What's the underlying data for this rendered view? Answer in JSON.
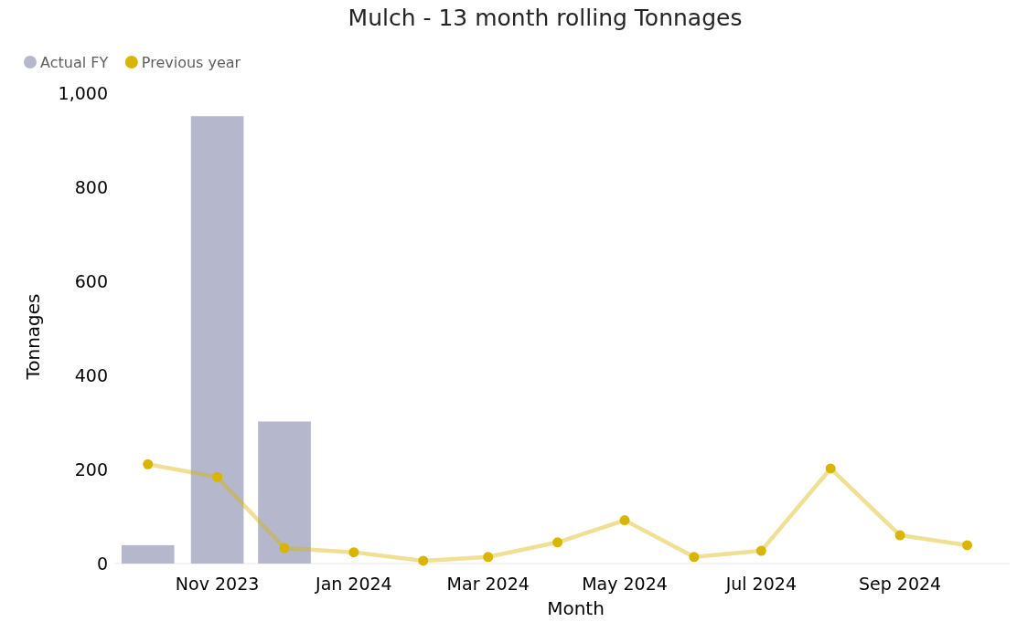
{
  "chart_data": {
    "type": "bar",
    "title": "Mulch - 13 month rolling Tonnages",
    "xlabel": "Month",
    "ylabel": "Tonnages",
    "x": [
      "2023-10",
      "2023-11",
      "2023-12",
      "2024-01",
      "2024-02",
      "2024-03",
      "2024-04",
      "2024-05",
      "2024-06",
      "2024-07",
      "2024-08",
      "2024-09",
      "2024-10"
    ],
    "series": [
      {
        "name": "Actual FY",
        "color": "#b5b7cd",
        "values": [
          39,
          951,
          302,
          null,
          null,
          null,
          null,
          null,
          null,
          null,
          null,
          null,
          null
        ]
      },
      {
        "name": "Previous year",
        "type": "line",
        "color": "#dab500",
        "values": [
          211,
          184,
          33,
          24,
          6,
          14,
          45,
          92,
          14,
          27,
          202,
          60,
          39
        ]
      }
    ],
    "xticks": [
      {
        "value": "2023-11",
        "label": "Nov 2023"
      },
      {
        "value": "2024-01",
        "label": "Jan 2024"
      },
      {
        "value": "2024-03",
        "label": "Mar 2024"
      },
      {
        "value": "2024-05",
        "label": "May 2024"
      },
      {
        "value": "2024-07",
        "label": "Jul 2024"
      },
      {
        "value": "2024-09",
        "label": "Sep 2024"
      }
    ],
    "xlim": [
      "2023-09-16",
      "2024-10-20"
    ],
    "ylim": [
      0,
      1000
    ],
    "yticks": [
      0,
      200,
      400,
      600,
      800,
      {
        "value": 1000,
        "label": "1,000"
      }
    ],
    "legend": "top left",
    "marker": "circle",
    "grid": false
  }
}
